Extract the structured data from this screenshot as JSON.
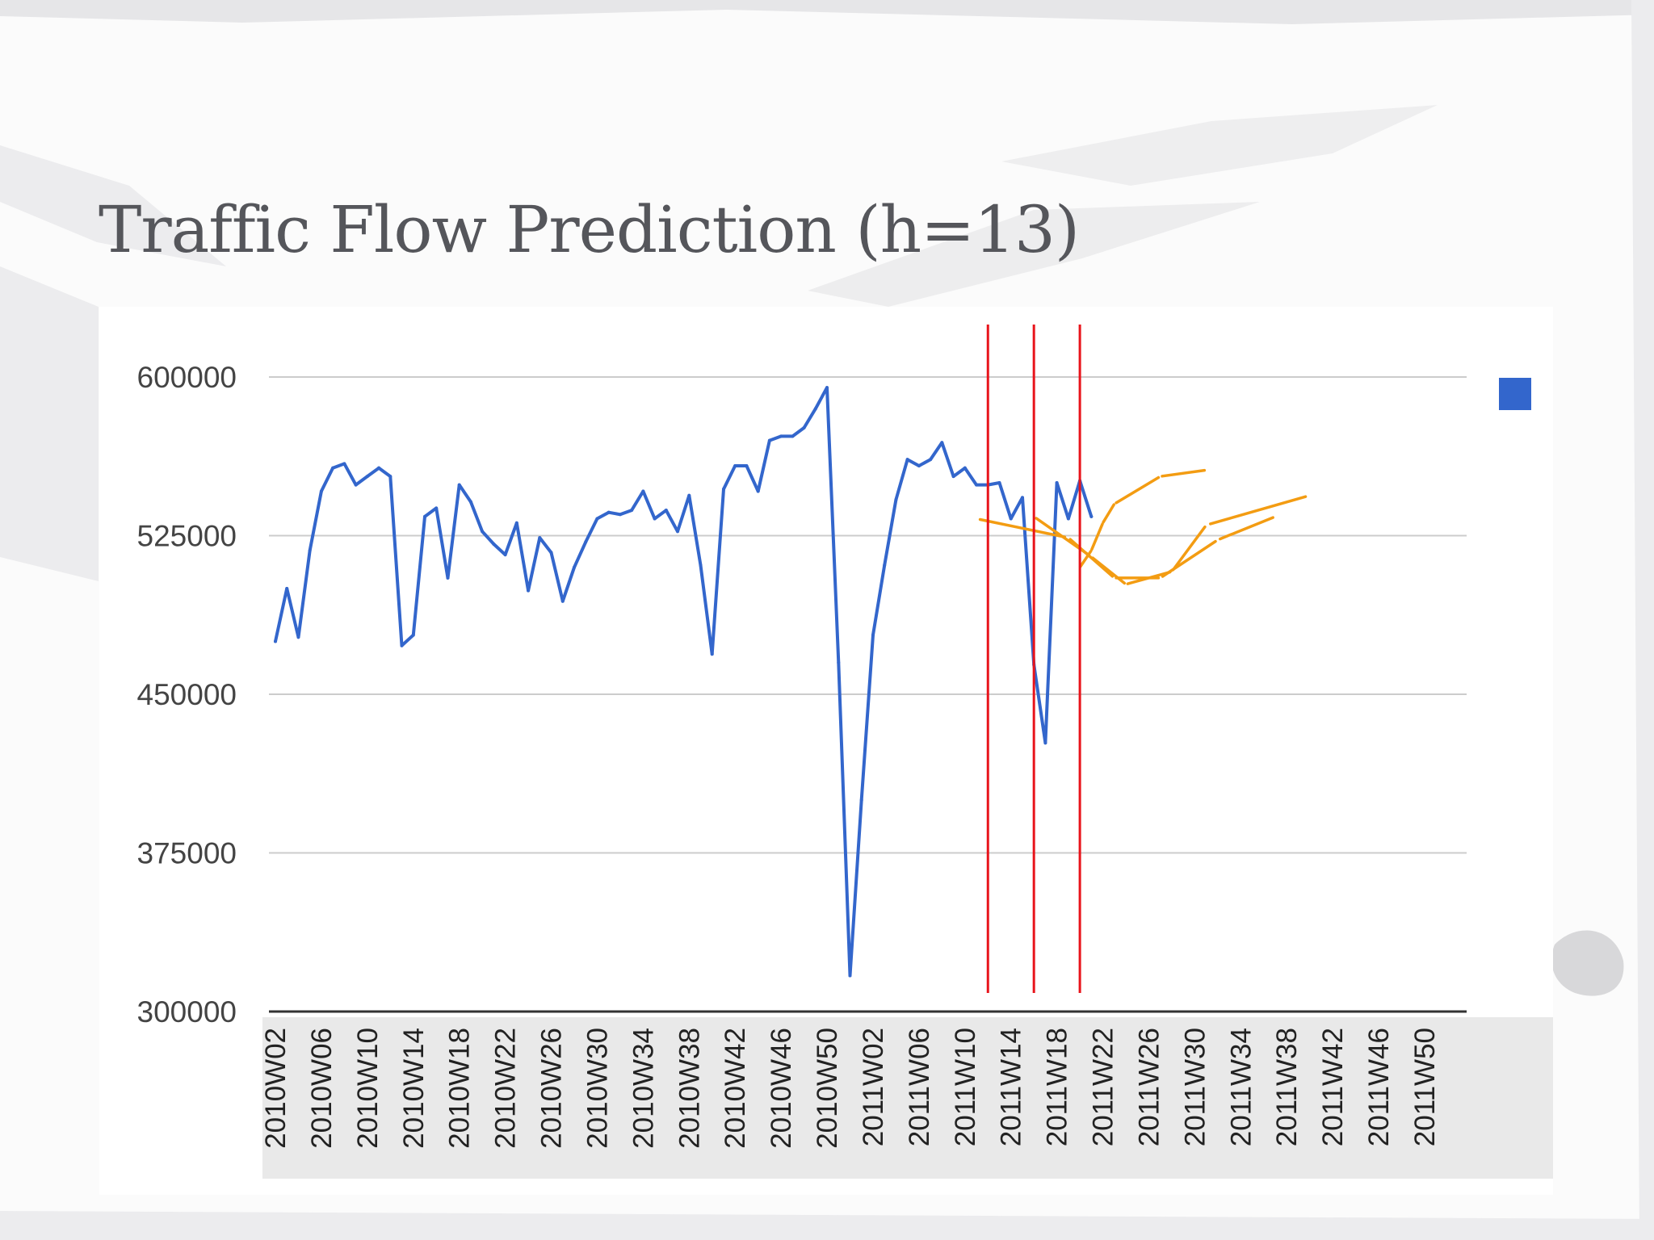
{
  "slide": {
    "title": "Traffic Flow Prediction (h=13)"
  },
  "colors": {
    "series": "#3366cc",
    "prediction": "#f39c12",
    "marker": "#e8141b",
    "grid": "#cccccc",
    "axis": "#333333",
    "title": "#55565b"
  },
  "chart_data": {
    "type": "line",
    "title": "",
    "xlabel": "",
    "ylabel": "",
    "ylim": [
      300000,
      600000
    ],
    "y_ticks": [
      300000,
      375000,
      450000,
      525000,
      600000
    ],
    "y_tick_labels": [
      "300000",
      "375000",
      "450000",
      "525000",
      "600000"
    ],
    "x_tick_labels": [
      "2010W02",
      "2010W06",
      "2010W10",
      "2010W14",
      "2010W18",
      "2010W22",
      "2010W26",
      "2010W30",
      "2010W34",
      "2010W38",
      "2010W42",
      "2010W46",
      "2010W50",
      "2011W02",
      "2011W06",
      "2011W10",
      "2011W14",
      "2011W18",
      "2011W22",
      "2011W26",
      "2011W30",
      "2011W34",
      "2011W38",
      "2011W42",
      "2011W46",
      "2011W50"
    ],
    "grid": true,
    "legend": "right",
    "series": [
      {
        "x": [
          "2010W02",
          "2010W03",
          "2010W04",
          "2010W05",
          "2010W06",
          "2010W07",
          "2010W08",
          "2010W09",
          "2010W10",
          "2010W11",
          "2010W12",
          "2010W13",
          "2010W14",
          "2010W15",
          "2010W16",
          "2010W17",
          "2010W18",
          "2010W19",
          "2010W20",
          "2010W21",
          "2010W22",
          "2010W23",
          "2010W24",
          "2010W25",
          "2010W26",
          "2010W27",
          "2010W28",
          "2010W29",
          "2010W30",
          "2010W31",
          "2010W32",
          "2010W33",
          "2010W34",
          "2010W35",
          "2010W36",
          "2010W37",
          "2010W38",
          "2010W39",
          "2010W40",
          "2010W41",
          "2010W42",
          "2010W43",
          "2010W44",
          "2010W45",
          "2010W46",
          "2010W47",
          "2010W48",
          "2010W49",
          "2010W50",
          "2010W51",
          "2010W52",
          "2011W01",
          "2011W02",
          "2011W03",
          "2011W04",
          "2011W05",
          "2011W06",
          "2011W07",
          "2011W08",
          "2011W09",
          "2011W10",
          "2011W11",
          "2011W12",
          "2011W13",
          "2011W14",
          "2011W15",
          "2011W16",
          "2011W17",
          "2011W18",
          "2011W19",
          "2011W20",
          "2011W21"
        ],
        "values": [
          475000,
          500000,
          477000,
          518000,
          546000,
          557000,
          559000,
          549000,
          553000,
          557000,
          553000,
          473000,
          478000,
          534000,
          538000,
          505000,
          549000,
          541000,
          527000,
          521000,
          516000,
          531000,
          499000,
          524000,
          517000,
          494000,
          510000,
          522000,
          533000,
          536000,
          535000,
          537000,
          546000,
          533000,
          537000,
          527000,
          544000,
          511000,
          469000,
          547000,
          558000,
          558000,
          546000,
          570000,
          572000,
          572000,
          576000,
          585000,
          595000,
          465000,
          317000,
          400000,
          478000,
          511000,
          542000,
          561000,
          558000,
          561000,
          569000,
          553000,
          557000,
          549000,
          549000,
          550000,
          533000,
          543000,
          464000,
          427000,
          550000,
          533000,
          551000,
          534000
        ]
      }
    ],
    "predictions": [
      {
        "x": [
          "2011W11",
          "2011W19",
          "2011W23",
          "2011W27",
          "2011W32",
          "2011W37"
        ],
        "values": [
          533000,
          524000,
          505000,
          505000,
          523000,
          534000
        ]
      },
      {
        "x": [
          "2011W16",
          "2011W21",
          "2011W24",
          "2011W28",
          "2011W31",
          "2011W40"
        ],
        "values": [
          534000,
          515000,
          502000,
          508000,
          530000,
          544000
        ]
      },
      {
        "x": [
          "2011W20",
          "2011W21",
          "2011W22",
          "2011W23",
          "2011W27",
          "2011W31"
        ],
        "values": [
          510000,
          518000,
          531000,
          540000,
          553000,
          556000
        ]
      }
    ],
    "vertical_markers": [
      "2011W12",
      "2011W16",
      "2011W20"
    ]
  }
}
